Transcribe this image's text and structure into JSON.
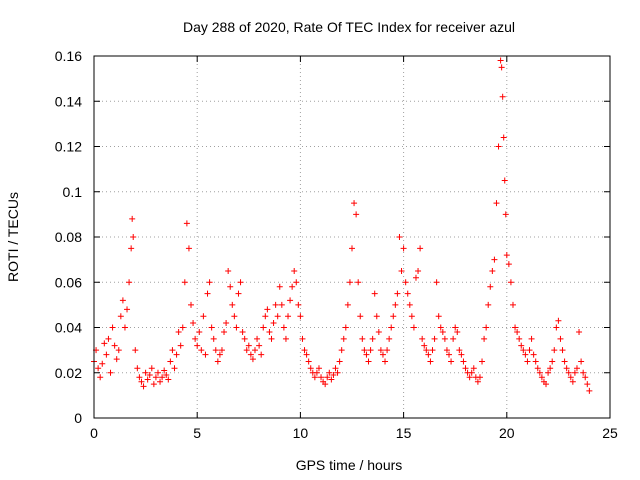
{
  "chart_data": {
    "type": "scatter",
    "title": "Day 288 of 2020, Rate Of TEC Index for receiver azul",
    "xlabel": "GPS time / hours",
    "ylabel": "ROTI / TECUs",
    "xlim": [
      0,
      25
    ],
    "ylim": [
      0,
      0.16
    ],
    "xticks": [
      0,
      5,
      10,
      15,
      20,
      25
    ],
    "xtick_labels": [
      "0",
      "5",
      "10",
      "15",
      "20",
      "25"
    ],
    "yticks": [
      0,
      0.02,
      0.04,
      0.06,
      0.08,
      0.1,
      0.12,
      0.14,
      0.16
    ],
    "ytick_labels": [
      "0",
      "0.02",
      "0.04",
      "0.06",
      "0.08",
      "0.1",
      "0.12",
      "0.14",
      "0.16"
    ],
    "grid": true,
    "legend": "none",
    "marker": "plus",
    "color": "#ff0000",
    "series": [
      {
        "x": [
          0.0,
          0.1,
          0.2,
          0.3,
          0.4,
          0.5,
          0.6,
          0.7,
          0.8,
          0.9,
          1.0,
          1.1,
          1.2,
          1.3,
          1.4,
          1.5,
          1.6,
          1.7,
          1.8,
          1.85,
          1.9,
          2.0,
          2.1,
          2.2,
          2.3,
          2.4,
          2.5,
          2.6,
          2.7,
          2.8,
          2.9,
          3.0,
          3.1,
          3.2,
          3.3,
          3.4,
          3.5,
          3.6,
          3.7,
          3.8,
          3.9,
          4.0,
          4.1,
          4.2,
          4.3,
          4.4,
          4.5,
          4.6,
          4.7,
          4.8,
          4.9,
          5.0,
          5.1,
          5.2,
          5.3,
          5.4,
          5.5,
          5.6,
          5.7,
          5.8,
          5.9,
          6.0,
          6.1,
          6.2,
          6.3,
          6.4,
          6.5,
          6.6,
          6.7,
          6.8,
          6.9,
          7.0,
          7.1,
          7.2,
          7.3,
          7.4,
          7.5,
          7.6,
          7.7,
          7.8,
          7.9,
          8.0,
          8.1,
          8.2,
          8.3,
          8.4,
          8.5,
          8.6,
          8.7,
          8.8,
          8.9,
          9.0,
          9.1,
          9.2,
          9.3,
          9.4,
          9.5,
          9.6,
          9.7,
          9.8,
          9.9,
          10.0,
          10.1,
          10.2,
          10.3,
          10.4,
          10.5,
          10.6,
          10.7,
          10.8,
          10.9,
          11.0,
          11.1,
          11.2,
          11.3,
          11.4,
          11.5,
          11.6,
          11.7,
          11.8,
          11.9,
          12.0,
          12.1,
          12.2,
          12.3,
          12.4,
          12.5,
          12.6,
          12.7,
          12.8,
          12.9,
          13.0,
          13.1,
          13.2,
          13.3,
          13.4,
          13.5,
          13.6,
          13.7,
          13.8,
          13.9,
          14.0,
          14.1,
          14.2,
          14.3,
          14.4,
          14.5,
          14.6,
          14.7,
          14.8,
          14.9,
          15.0,
          15.1,
          15.2,
          15.3,
          15.4,
          15.5,
          15.6,
          15.7,
          15.8,
          15.9,
          16.0,
          16.1,
          16.2,
          16.3,
          16.4,
          16.5,
          16.6,
          16.7,
          16.8,
          16.9,
          17.0,
          17.1,
          17.2,
          17.3,
          17.4,
          17.5,
          17.6,
          17.7,
          17.8,
          17.9,
          18.0,
          18.1,
          18.2,
          18.3,
          18.4,
          18.5,
          18.6,
          18.7,
          18.8,
          18.9,
          19.0,
          19.1,
          19.2,
          19.3,
          19.4,
          19.5,
          19.6,
          19.7,
          19.75,
          19.8,
          19.85,
          19.9,
          19.95,
          20.0,
          20.1,
          20.2,
          20.3,
          20.4,
          20.5,
          20.6,
          20.7,
          20.8,
          20.9,
          21.0,
          21.1,
          21.2,
          21.3,
          21.4,
          21.5,
          21.6,
          21.7,
          21.8,
          21.9,
          22.0,
          22.1,
          22.2,
          22.3,
          22.4,
          22.5,
          22.6,
          22.7,
          22.8,
          22.9,
          23.0,
          23.1,
          23.2,
          23.3,
          23.4,
          23.5,
          23.6,
          23.7,
          23.8,
          23.9,
          24.0
        ],
        "y": [
          0.025,
          0.03,
          0.022,
          0.018,
          0.024,
          0.033,
          0.028,
          0.035,
          0.02,
          0.04,
          0.032,
          0.026,
          0.03,
          0.045,
          0.052,
          0.04,
          0.048,
          0.06,
          0.075,
          0.088,
          0.08,
          0.03,
          0.022,
          0.018,
          0.016,
          0.014,
          0.02,
          0.017,
          0.019,
          0.022,
          0.015,
          0.018,
          0.02,
          0.016,
          0.018,
          0.021,
          0.019,
          0.017,
          0.025,
          0.03,
          0.022,
          0.028,
          0.038,
          0.032,
          0.04,
          0.06,
          0.086,
          0.075,
          0.05,
          0.042,
          0.035,
          0.032,
          0.038,
          0.03,
          0.045,
          0.028,
          0.055,
          0.06,
          0.04,
          0.035,
          0.03,
          0.025,
          0.028,
          0.03,
          0.038,
          0.042,
          0.065,
          0.058,
          0.05,
          0.045,
          0.04,
          0.055,
          0.06,
          0.038,
          0.035,
          0.03,
          0.032,
          0.028,
          0.026,
          0.03,
          0.035,
          0.032,
          0.028,
          0.04,
          0.045,
          0.048,
          0.038,
          0.035,
          0.042,
          0.05,
          0.045,
          0.058,
          0.05,
          0.04,
          0.035,
          0.045,
          0.052,
          0.058,
          0.065,
          0.06,
          0.05,
          0.045,
          0.035,
          0.03,
          0.028,
          0.025,
          0.022,
          0.02,
          0.018,
          0.02,
          0.022,
          0.018,
          0.016,
          0.015,
          0.018,
          0.02,
          0.017,
          0.019,
          0.022,
          0.02,
          0.025,
          0.03,
          0.035,
          0.04,
          0.05,
          0.06,
          0.075,
          0.095,
          0.09,
          0.06,
          0.045,
          0.035,
          0.03,
          0.028,
          0.025,
          0.03,
          0.035,
          0.055,
          0.045,
          0.038,
          0.03,
          0.028,
          0.025,
          0.03,
          0.035,
          0.04,
          0.045,
          0.05,
          0.055,
          0.08,
          0.065,
          0.075,
          0.06,
          0.055,
          0.05,
          0.045,
          0.04,
          0.062,
          0.065,
          0.075,
          0.035,
          0.032,
          0.03,
          0.028,
          0.025,
          0.03,
          0.035,
          0.06,
          0.045,
          0.04,
          0.038,
          0.035,
          0.03,
          0.028,
          0.025,
          0.035,
          0.04,
          0.038,
          0.03,
          0.028,
          0.025,
          0.022,
          0.02,
          0.018,
          0.02,
          0.022,
          0.018,
          0.016,
          0.018,
          0.025,
          0.035,
          0.04,
          0.05,
          0.058,
          0.065,
          0.07,
          0.095,
          0.12,
          0.158,
          0.155,
          0.142,
          0.124,
          0.105,
          0.09,
          0.072,
          0.068,
          0.06,
          0.05,
          0.04,
          0.038,
          0.035,
          0.032,
          0.03,
          0.028,
          0.025,
          0.03,
          0.035,
          0.028,
          0.025,
          0.022,
          0.02,
          0.018,
          0.016,
          0.015,
          0.02,
          0.022,
          0.025,
          0.03,
          0.04,
          0.043,
          0.035,
          0.03,
          0.025,
          0.022,
          0.02,
          0.018,
          0.016,
          0.02,
          0.022,
          0.038,
          0.025,
          0.02,
          0.018,
          0.015,
          0.012
        ]
      }
    ]
  }
}
